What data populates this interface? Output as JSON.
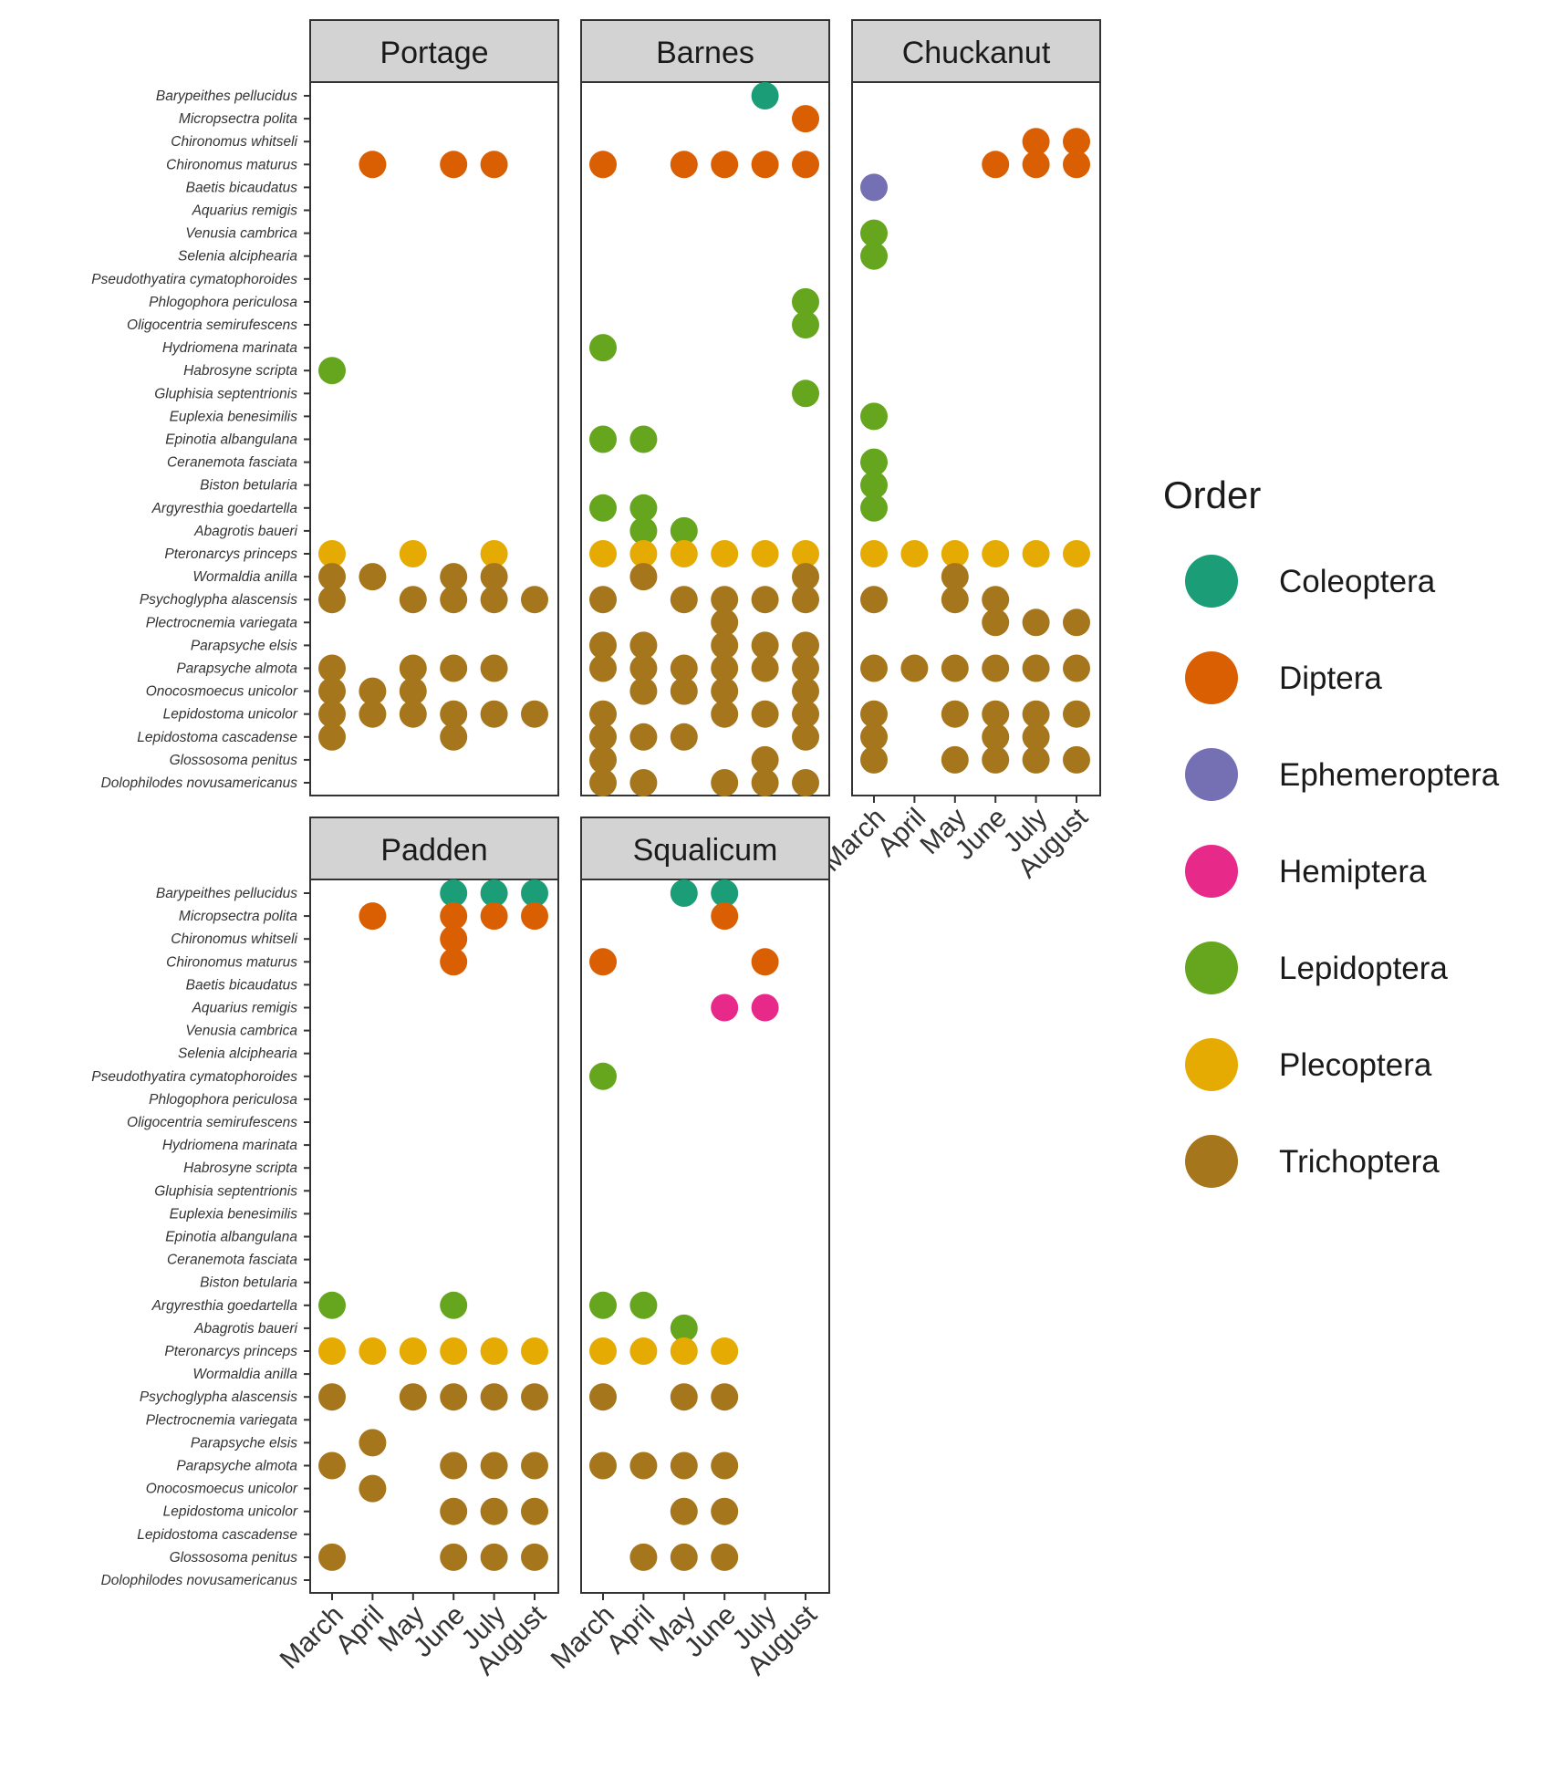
{
  "chart_data": {
    "type": "scatter",
    "title": "",
    "xlabel": "",
    "ylabel": "",
    "months": [
      "March",
      "April",
      "May",
      "June",
      "July",
      "August"
    ],
    "species": [
      "Barypeithes pellucidus",
      "Micropsectra polita",
      "Chironomus whitseli",
      "Chironomus maturus",
      "Baetis bicaudatus",
      "Aquarius remigis",
      "Venusia cambrica",
      "Selenia alciphearia",
      "Pseudothyatira cymatophoroides",
      "Phlogophora periculosa",
      "Oligocentria semirufescens",
      "Hydriomena marinata",
      "Habrosyne scripta",
      "Gluphisia septentrionis",
      "Euplexia benesimilis",
      "Epinotia albangulana",
      "Ceranemota fasciata",
      "Biston betularia",
      "Argyresthia goedartella",
      "Abagrotis baueri",
      "Pteronarcys princeps",
      "Wormaldia anilla",
      "Psychoglypha alascensis",
      "Plectrocnemia variegata",
      "Parapsyche elsis",
      "Parapsyche almota",
      "Onocosmoecus unicolor",
      "Lepidostoma unicolor",
      "Lepidostoma cascadense",
      "Glossosoma penitus",
      "Dolophilodes novusamericanus"
    ],
    "legend": {
      "title": "Order",
      "position": "right",
      "entries": [
        {
          "label": "Coleoptera",
          "color": "#1B9E77"
        },
        {
          "label": "Diptera",
          "color": "#D95F02"
        },
        {
          "label": "Ephemeroptera",
          "color": "#7570B3"
        },
        {
          "label": "Hemiptera",
          "color": "#E7298A"
        },
        {
          "label": "Lepidoptera",
          "color": "#66A61E"
        },
        {
          "label": "Plecoptera",
          "color": "#E6AB02"
        },
        {
          "label": "Trichoptera",
          "color": "#A6761D"
        }
      ]
    },
    "species_order": {
      "Barypeithes pellucidus": "Coleoptera",
      "Micropsectra polita": "Diptera",
      "Chironomus whitseli": "Diptera",
      "Chironomus maturus": "Diptera",
      "Baetis bicaudatus": "Ephemeroptera",
      "Aquarius remigis": "Hemiptera",
      "Venusia cambrica": "Lepidoptera",
      "Selenia alciphearia": "Lepidoptera",
      "Pseudothyatira cymatophoroides": "Lepidoptera",
      "Phlogophora periculosa": "Lepidoptera",
      "Oligocentria semirufescens": "Lepidoptera",
      "Hydriomena marinata": "Lepidoptera",
      "Habrosyne scripta": "Lepidoptera",
      "Gluphisia septentrionis": "Lepidoptera",
      "Euplexia benesimilis": "Lepidoptera",
      "Epinotia albangulana": "Lepidoptera",
      "Ceranemota fasciata": "Lepidoptera",
      "Biston betularia": "Lepidoptera",
      "Argyresthia goedartella": "Lepidoptera",
      "Abagrotis baueri": "Lepidoptera",
      "Pteronarcys princeps": "Plecoptera",
      "Wormaldia anilla": "Trichoptera",
      "Psychoglypha alascensis": "Trichoptera",
      "Plectrocnemia variegata": "Trichoptera",
      "Parapsyche elsis": "Trichoptera",
      "Parapsyche almota": "Trichoptera",
      "Onocosmoecus unicolor": "Trichoptera",
      "Lepidostoma unicolor": "Trichoptera",
      "Lepidostoma cascadense": "Trichoptera",
      "Glossosoma penitus": "Trichoptera",
      "Dolophilodes novusamericanus": "Trichoptera"
    },
    "panels": [
      {
        "site": "Portage",
        "show_y_axis": true,
        "show_x_axis": false,
        "points": [
          {
            "species": "Chironomus maturus",
            "months": [
              "April",
              "June",
              "July"
            ]
          },
          {
            "species": "Habrosyne scripta",
            "months": [
              "March"
            ]
          },
          {
            "species": "Pteronarcys princeps",
            "months": [
              "March",
              "May",
              "July"
            ]
          },
          {
            "species": "Wormaldia anilla",
            "months": [
              "March",
              "April",
              "June",
              "July"
            ]
          },
          {
            "species": "Psychoglypha alascensis",
            "months": [
              "March",
              "May",
              "June",
              "July",
              "August"
            ]
          },
          {
            "species": "Parapsyche almota",
            "months": [
              "March",
              "May",
              "June",
              "July"
            ]
          },
          {
            "species": "Onocosmoecus unicolor",
            "months": [
              "March",
              "April",
              "May"
            ]
          },
          {
            "species": "Lepidostoma unicolor",
            "months": [
              "March",
              "April",
              "May",
              "June",
              "July",
              "August"
            ]
          },
          {
            "species": "Lepidostoma cascadense",
            "months": [
              "March",
              "June"
            ]
          }
        ]
      },
      {
        "site": "Barnes",
        "show_y_axis": false,
        "show_x_axis": false,
        "points": [
          {
            "species": "Barypeithes pellucidus",
            "months": [
              "July"
            ]
          },
          {
            "species": "Micropsectra polita",
            "months": [
              "August"
            ]
          },
          {
            "species": "Chironomus maturus",
            "months": [
              "March",
              "May",
              "June",
              "July",
              "August"
            ]
          },
          {
            "species": "Phlogophora periculosa",
            "months": [
              "August"
            ]
          },
          {
            "species": "Oligocentria semirufescens",
            "months": [
              "August"
            ]
          },
          {
            "species": "Hydriomena marinata",
            "months": [
              "March"
            ]
          },
          {
            "species": "Gluphisia septentrionis",
            "months": [
              "August"
            ]
          },
          {
            "species": "Epinotia albangulana",
            "months": [
              "March",
              "April"
            ]
          },
          {
            "species": "Argyresthia goedartella",
            "months": [
              "March",
              "April"
            ]
          },
          {
            "species": "Abagrotis baueri",
            "months": [
              "April",
              "May"
            ]
          },
          {
            "species": "Pteronarcys princeps",
            "months": [
              "March",
              "April",
              "May",
              "June",
              "July",
              "August"
            ]
          },
          {
            "species": "Wormaldia anilla",
            "months": [
              "April",
              "August"
            ]
          },
          {
            "species": "Psychoglypha alascensis",
            "months": [
              "March",
              "May",
              "June",
              "July",
              "August"
            ]
          },
          {
            "species": "Plectrocnemia variegata",
            "months": [
              "June"
            ]
          },
          {
            "species": "Parapsyche elsis",
            "months": [
              "March",
              "April",
              "June",
              "July",
              "August"
            ]
          },
          {
            "species": "Parapsyche almota",
            "months": [
              "March",
              "April",
              "May",
              "June",
              "July",
              "August"
            ]
          },
          {
            "species": "Onocosmoecus unicolor",
            "months": [
              "April",
              "May",
              "June",
              "August"
            ]
          },
          {
            "species": "Lepidostoma unicolor",
            "months": [
              "March",
              "June",
              "July",
              "August"
            ]
          },
          {
            "species": "Lepidostoma cascadense",
            "months": [
              "March",
              "April",
              "May",
              "August"
            ]
          },
          {
            "species": "Glossosoma penitus",
            "months": [
              "March",
              "July"
            ]
          },
          {
            "species": "Dolophilodes novusamericanus",
            "months": [
              "March",
              "April",
              "June",
              "July",
              "August"
            ]
          }
        ]
      },
      {
        "site": "Chuckanut",
        "show_y_axis": false,
        "show_x_axis": true,
        "points": [
          {
            "species": "Chironomus whitseli",
            "months": [
              "July",
              "August"
            ]
          },
          {
            "species": "Chironomus maturus",
            "months": [
              "June",
              "July",
              "August"
            ]
          },
          {
            "species": "Baetis bicaudatus",
            "months": [
              "March"
            ]
          },
          {
            "species": "Venusia cambrica",
            "months": [
              "March"
            ]
          },
          {
            "species": "Selenia alciphearia",
            "months": [
              "March"
            ]
          },
          {
            "species": "Euplexia benesimilis",
            "months": [
              "March"
            ]
          },
          {
            "species": "Ceranemota fasciata",
            "months": [
              "March"
            ]
          },
          {
            "species": "Biston betularia",
            "months": [
              "March"
            ]
          },
          {
            "species": "Argyresthia goedartella",
            "months": [
              "March"
            ]
          },
          {
            "species": "Pteronarcys princeps",
            "months": [
              "March",
              "April",
              "May",
              "June",
              "July",
              "August"
            ]
          },
          {
            "species": "Wormaldia anilla",
            "months": [
              "May"
            ]
          },
          {
            "species": "Psychoglypha alascensis",
            "months": [
              "March",
              "May",
              "June"
            ]
          },
          {
            "species": "Plectrocnemia variegata",
            "months": [
              "June",
              "July",
              "August"
            ]
          },
          {
            "species": "Parapsyche almota",
            "months": [
              "March",
              "April",
              "May",
              "June",
              "July",
              "August"
            ]
          },
          {
            "species": "Lepidostoma unicolor",
            "months": [
              "March",
              "May",
              "June",
              "July",
              "August"
            ]
          },
          {
            "species": "Lepidostoma cascadense",
            "months": [
              "March",
              "June",
              "July"
            ]
          },
          {
            "species": "Glossosoma penitus",
            "months": [
              "March",
              "May",
              "June",
              "July",
              "August"
            ]
          }
        ]
      },
      {
        "site": "Padden",
        "show_y_axis": true,
        "show_x_axis": true,
        "points": [
          {
            "species": "Barypeithes pellucidus",
            "months": [
              "June",
              "July",
              "August"
            ]
          },
          {
            "species": "Micropsectra polita",
            "months": [
              "April",
              "June",
              "July",
              "August"
            ]
          },
          {
            "species": "Chironomus whitseli",
            "months": [
              "June"
            ]
          },
          {
            "species": "Chironomus maturus",
            "months": [
              "June"
            ]
          },
          {
            "species": "Argyresthia goedartella",
            "months": [
              "March",
              "June"
            ]
          },
          {
            "species": "Pteronarcys princeps",
            "months": [
              "March",
              "April",
              "May",
              "June",
              "July",
              "August"
            ]
          },
          {
            "species": "Psychoglypha alascensis",
            "months": [
              "March",
              "May",
              "June",
              "July",
              "August"
            ]
          },
          {
            "species": "Parapsyche elsis",
            "months": [
              "April"
            ]
          },
          {
            "species": "Parapsyche almota",
            "months": [
              "March",
              "June",
              "July",
              "August"
            ]
          },
          {
            "species": "Onocosmoecus unicolor",
            "months": [
              "April"
            ]
          },
          {
            "species": "Lepidostoma unicolor",
            "months": [
              "June",
              "July",
              "August"
            ]
          },
          {
            "species": "Glossosoma penitus",
            "months": [
              "March",
              "June",
              "July",
              "August"
            ]
          }
        ]
      },
      {
        "site": "Squalicum",
        "show_y_axis": false,
        "show_x_axis": true,
        "points": [
          {
            "species": "Barypeithes pellucidus",
            "months": [
              "May",
              "June"
            ]
          },
          {
            "species": "Micropsectra polita",
            "months": [
              "June"
            ]
          },
          {
            "species": "Chironomus maturus",
            "months": [
              "March",
              "July"
            ]
          },
          {
            "species": "Aquarius remigis",
            "months": [
              "June",
              "July"
            ]
          },
          {
            "species": "Pseudothyatira cymatophoroides",
            "months": [
              "March"
            ]
          },
          {
            "species": "Argyresthia goedartella",
            "months": [
              "March",
              "April"
            ]
          },
          {
            "species": "Abagrotis baueri",
            "months": [
              "May"
            ]
          },
          {
            "species": "Pteronarcys princeps",
            "months": [
              "March",
              "April",
              "May",
              "June"
            ]
          },
          {
            "species": "Psychoglypha alascensis",
            "months": [
              "March",
              "May",
              "June"
            ]
          },
          {
            "species": "Parapsyche almota",
            "months": [
              "March",
              "April",
              "May",
              "June"
            ]
          },
          {
            "species": "Lepidostoma unicolor",
            "months": [
              "May",
              "June"
            ]
          },
          {
            "species": "Glossosoma penitus",
            "months": [
              "April",
              "May",
              "June"
            ]
          }
        ]
      }
    ]
  }
}
